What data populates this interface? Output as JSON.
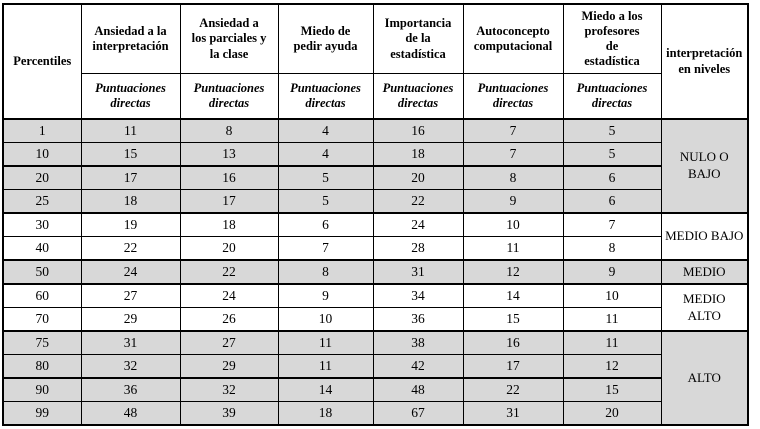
{
  "table": {
    "columns": [
      {
        "title": "Percentiles"
      },
      {
        "title": "Ansiedad a la\ninterpretación",
        "sub": "Puntuaciones\ndirectas"
      },
      {
        "title": "Ansiedad a\nlos parciales y\nla clase",
        "sub": "Puntuaciones\ndirectas"
      },
      {
        "title": "Miedo de\npedir ayuda",
        "sub": "Puntuaciones\ndirectas"
      },
      {
        "title": "Importancia\nde la\nestadística",
        "sub": "Puntuaciones\ndirectas"
      },
      {
        "title": "Autoconcepto\ncomputacional",
        "sub": "Puntuaciones\ndirectas"
      },
      {
        "title": "Miedo a los\nprofesores\nde\nestadística",
        "sub": "Puntuaciones\ndirectas"
      },
      {
        "title": "interpretación\nen niveles"
      }
    ],
    "rows": [
      {
        "percentile": "1",
        "values": [
          "11",
          "8",
          "4",
          "16",
          "7",
          "5"
        ],
        "shaded": true,
        "divider_above": false
      },
      {
        "percentile": "10",
        "values": [
          "15",
          "13",
          "4",
          "18",
          "7",
          "5"
        ],
        "shaded": true,
        "divider_above": false
      },
      {
        "percentile": "20",
        "values": [
          "17",
          "16",
          "5",
          "20",
          "8",
          "6"
        ],
        "shaded": true,
        "divider_above": true
      },
      {
        "percentile": "25",
        "values": [
          "18",
          "17",
          "5",
          "22",
          "9",
          "6"
        ],
        "shaded": true,
        "divider_above": false
      },
      {
        "percentile": "30",
        "values": [
          "19",
          "18",
          "6",
          "24",
          "10",
          "7"
        ],
        "shaded": false,
        "divider_above": true
      },
      {
        "percentile": "40",
        "values": [
          "22",
          "20",
          "7",
          "28",
          "11",
          "8"
        ],
        "shaded": false,
        "divider_above": false
      },
      {
        "percentile": "50",
        "values": [
          "24",
          "22",
          "8",
          "31",
          "12",
          "9"
        ],
        "shaded": true,
        "divider_above": true
      },
      {
        "percentile": "60",
        "values": [
          "27",
          "24",
          "9",
          "34",
          "14",
          "10"
        ],
        "shaded": false,
        "divider_above": true
      },
      {
        "percentile": "70",
        "values": [
          "29",
          "26",
          "10",
          "36",
          "15",
          "11"
        ],
        "shaded": false,
        "divider_above": false
      },
      {
        "percentile": "75",
        "values": [
          "31",
          "27",
          "11",
          "38",
          "16",
          "11"
        ],
        "shaded": true,
        "divider_above": true
      },
      {
        "percentile": "80",
        "values": [
          "32",
          "29",
          "11",
          "42",
          "17",
          "12"
        ],
        "shaded": true,
        "divider_above": false
      },
      {
        "percentile": "90",
        "values": [
          "36",
          "32",
          "14",
          "48",
          "22",
          "15"
        ],
        "shaded": true,
        "divider_above": true
      },
      {
        "percentile": "99",
        "values": [
          "48",
          "39",
          "18",
          "67",
          "31",
          "20"
        ],
        "shaded": true,
        "divider_above": false
      }
    ],
    "levels": [
      {
        "label": "NULO O\nBAJO",
        "start": 0,
        "span": 4,
        "shaded": true
      },
      {
        "label": "MEDIO BAJO",
        "start": 4,
        "span": 2,
        "shaded": false
      },
      {
        "label": "MEDIO",
        "start": 6,
        "span": 1,
        "shaded": true
      },
      {
        "label": "MEDIO\nALTO",
        "start": 7,
        "span": 2,
        "shaded": false
      },
      {
        "label": "ALTO",
        "start": 9,
        "span": 4,
        "shaded": true
      }
    ],
    "colors": {
      "shaded_row": "#d8d8d8",
      "border": "#000000",
      "text": "#000000"
    }
  }
}
